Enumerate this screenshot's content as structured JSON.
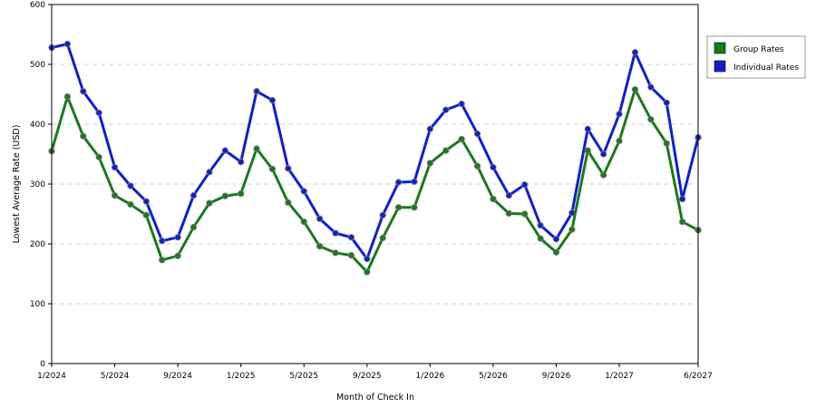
{
  "chart_data": {
    "type": "line",
    "title": "",
    "xlabel": "Month of Check In",
    "ylabel": "Lowest Average Rate (USD)",
    "ylim": [
      0,
      600
    ],
    "yticks": [
      0,
      100,
      200,
      300,
      400,
      500,
      600
    ],
    "x_tick_labels": [
      "1/2024",
      "5/2024",
      "9/2024",
      "1/2025",
      "5/2025",
      "9/2025",
      "1/2026",
      "5/2026",
      "9/2026",
      "1/2027",
      "6/2027"
    ],
    "x_tick_indices": [
      0,
      4,
      8,
      12,
      16,
      20,
      24,
      28,
      32,
      36,
      41
    ],
    "x": [
      "1/2024",
      "2/2024",
      "3/2024",
      "4/2024",
      "5/2024",
      "6/2024",
      "7/2024",
      "8/2024",
      "9/2024",
      "10/2024",
      "11/2024",
      "12/2024",
      "1/2025",
      "2/2025",
      "3/2025",
      "4/2025",
      "5/2025",
      "6/2025",
      "7/2025",
      "8/2025",
      "9/2025",
      "10/2025",
      "11/2025",
      "12/2025",
      "1/2026",
      "2/2026",
      "3/2026",
      "4/2026",
      "5/2026",
      "6/2026",
      "7/2026",
      "8/2026",
      "9/2026",
      "10/2026",
      "11/2026",
      "12/2026",
      "1/2027",
      "2/2027",
      "3/2027",
      "4/2027",
      "5/2027",
      "6/2027"
    ],
    "grid": true,
    "legend_position": "top-right",
    "series": [
      {
        "name": "Group Rates",
        "color": "#1a7a1a",
        "values": [
          355,
          446,
          380,
          345,
          281,
          266,
          248,
          173,
          180,
          228,
          268,
          280,
          284,
          359,
          325,
          269,
          237,
          196,
          185,
          181,
          153,
          210,
          261,
          261,
          335,
          356,
          375,
          330,
          275,
          251,
          250,
          209,
          186,
          224,
          356,
          315,
          372,
          458,
          408,
          368,
          237,
          223
        ]
      },
      {
        "name": "Individual Rates",
        "color": "#0f1fcf",
        "values": [
          528,
          534,
          455,
          419,
          328,
          297,
          271,
          205,
          211,
          281,
          320,
          356,
          337,
          455,
          440,
          326,
          288,
          242,
          218,
          211,
          175,
          248,
          303,
          304,
          392,
          424,
          434,
          384,
          328,
          281,
          299,
          231,
          208,
          252,
          392,
          350,
          417,
          520,
          462,
          436,
          275,
          378
        ]
      }
    ]
  }
}
